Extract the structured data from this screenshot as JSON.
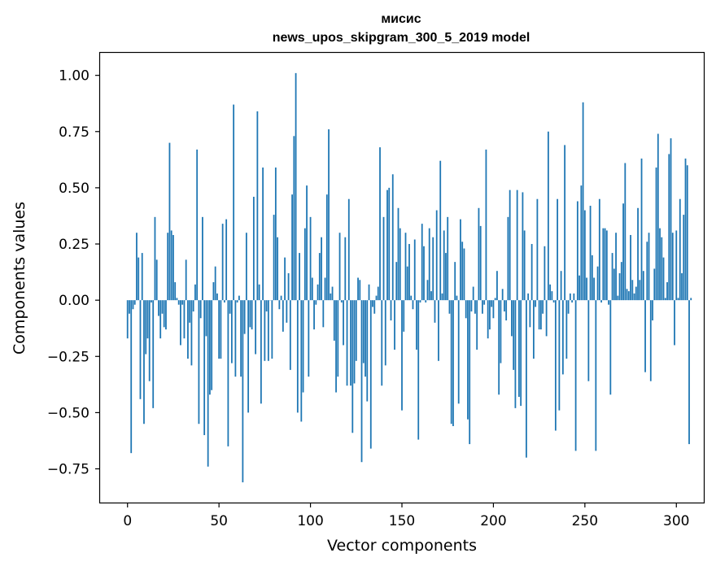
{
  "chart_data": {
    "type": "bar",
    "title": "мисис",
    "subtitle": "news_upos_skipgram_300_5_2019 model",
    "xlabel": "Vector components",
    "ylabel": "Components values",
    "xlim": [
      -15,
      315
    ],
    "ylim": [
      -0.9,
      1.1
    ],
    "xticks": [
      0,
      50,
      100,
      150,
      200,
      250,
      300
    ],
    "yticks": [
      -0.75,
      -0.5,
      -0.25,
      0.0,
      0.25,
      0.5,
      0.75,
      1.0
    ],
    "ytick_labels": [
      "−0.75",
      "−0.50",
      "−0.25",
      "0.00",
      "0.25",
      "0.50",
      "0.75",
      "1.00"
    ],
    "bar_color": "#1f77b4",
    "values": [
      -0.17,
      -0.06,
      -0.68,
      -0.04,
      -0.02,
      0.3,
      0.19,
      -0.44,
      0.21,
      -0.55,
      -0.24,
      -0.17,
      -0.36,
      -0.01,
      -0.48,
      0.37,
      0.18,
      -0.07,
      -0.17,
      -0.06,
      -0.12,
      -0.13,
      0.3,
      0.7,
      0.31,
      0.29,
      0.08,
      0.01,
      -0.02,
      -0.2,
      -0.02,
      -0.17,
      0.18,
      -0.26,
      -0.1,
      -0.29,
      -0.05,
      0.07,
      0.67,
      -0.55,
      -0.08,
      0.37,
      -0.6,
      -0.16,
      -0.74,
      -0.42,
      -0.4,
      0.08,
      0.15,
      0.03,
      -0.26,
      -0.26,
      0.34,
      -0.01,
      0.36,
      -0.65,
      -0.06,
      -0.28,
      0.87,
      -0.34,
      -0.01,
      0.02,
      -0.34,
      -0.81,
      -0.15,
      0.3,
      -0.5,
      -0.12,
      -0.13,
      0.46,
      -0.24,
      0.84,
      0.07,
      -0.46,
      0.59,
      -0.27,
      -0.05,
      -0.27,
      0.0,
      -0.26,
      0.38,
      0.59,
      0.28,
      -0.04,
      0.02,
      -0.14,
      0.19,
      -0.1,
      0.12,
      -0.31,
      0.47,
      0.73,
      1.01,
      -0.5,
      0.21,
      -0.54,
      -0.41,
      0.32,
      0.51,
      -0.34,
      0.37,
      0.1,
      -0.13,
      -0.02,
      0.07,
      0.21,
      0.28,
      -0.12,
      0.1,
      0.47,
      0.76,
      0.03,
      0.06,
      -0.18,
      -0.41,
      -0.34,
      0.3,
      -0.01,
      -0.2,
      0.28,
      -0.38,
      0.45,
      -0.38,
      -0.59,
      -0.37,
      -0.27,
      0.1,
      0.09,
      -0.72,
      -0.28,
      -0.34,
      -0.45,
      0.07,
      -0.66,
      -0.03,
      -0.06,
      0.02,
      0.06,
      0.68,
      -0.38,
      0.37,
      -0.29,
      0.49,
      0.5,
      -0.09,
      0.56,
      -0.22,
      0.17,
      0.41,
      0.32,
      -0.49,
      -0.14,
      0.3,
      0.15,
      0.25,
      0.02,
      -0.04,
      0.27,
      -0.22,
      -0.62,
      -0.01,
      0.34,
      0.24,
      -0.01,
      0.09,
      0.32,
      0.04,
      0.28,
      -0.1,
      0.4,
      -0.27,
      0.62,
      0.03,
      0.31,
      0.21,
      0.37,
      -0.06,
      -0.55,
      -0.56,
      0.17,
      0.02,
      -0.46,
      0.36,
      0.26,
      0.23,
      -0.08,
      -0.53,
      -0.64,
      -0.05,
      0.06,
      -0.06,
      -0.22,
      0.41,
      0.33,
      -0.06,
      -0.02,
      0.67,
      -0.17,
      -0.13,
      -0.03,
      -0.08,
      0.01,
      0.13,
      -0.42,
      -0.28,
      0.05,
      -0.05,
      -0.09,
      0.37,
      0.49,
      -0.16,
      -0.31,
      -0.48,
      0.49,
      -0.43,
      -0.47,
      0.48,
      0.31,
      -0.7,
      0.03,
      -0.12,
      0.25,
      -0.26,
      -0.03,
      0.45,
      -0.13,
      -0.13,
      -0.06,
      0.24,
      -0.16,
      0.75,
      0.07,
      0.04,
      -0.01,
      -0.58,
      0.45,
      -0.49,
      0.13,
      -0.33,
      0.69,
      -0.26,
      -0.06,
      0.03,
      -0.01,
      0.03,
      -0.67,
      0.44,
      0.11,
      0.51,
      0.88,
      0.4,
      0.1,
      -0.36,
      0.42,
      0.2,
      0.1,
      -0.67,
      0.15,
      0.45,
      -0.01,
      0.32,
      0.32,
      0.31,
      -0.02,
      -0.42,
      0.21,
      0.14,
      0.3,
      0.02,
      0.12,
      0.17,
      0.43,
      0.61,
      0.05,
      0.04,
      0.29,
      0.09,
      0.03,
      0.06,
      0.41,
      0.09,
      0.63,
      0.13,
      -0.32,
      0.26,
      0.3,
      -0.36,
      -0.09,
      0.14,
      0.59,
      0.74,
      0.32,
      0.28,
      0.19,
      0.01,
      0.08,
      0.65,
      0.72,
      0.3,
      -0.2,
      0.31,
      0.01,
      0.45,
      0.12,
      0.38,
      0.63,
      0.6,
      -0.64,
      0.01
    ]
  }
}
